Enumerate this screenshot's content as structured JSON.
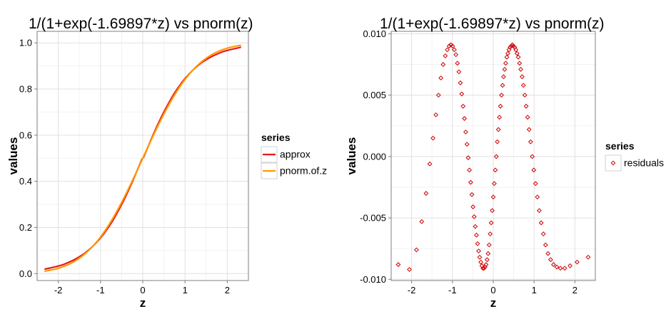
{
  "chart_data": [
    {
      "type": "line",
      "title": "1/(1+exp(-1.69897*z) vs pnorm(z)",
      "xlabel": "z",
      "ylabel": "values",
      "xlim": [
        -2.5,
        2.5
      ],
      "ylim": [
        -0.03,
        1.05
      ],
      "x_ticks": [
        -2,
        -1,
        0,
        1,
        2
      ],
      "x_tick_labels": [
        "-2",
        "-1",
        "0",
        "1",
        "2"
      ],
      "y_ticks": [
        0.0,
        0.2,
        0.4,
        0.6,
        0.8,
        1.0
      ],
      "y_tick_labels": [
        "0.0",
        "0.2",
        "0.4",
        "0.6",
        "0.8",
        "1.0"
      ],
      "grid": true,
      "legend": {
        "title": "series",
        "position": "right"
      },
      "x": [
        -2.326,
        -2.054,
        -1.881,
        -1.751,
        -1.645,
        -1.555,
        -1.476,
        -1.405,
        -1.341,
        -1.282,
        -1.227,
        -1.175,
        -1.126,
        -1.08,
        -1.036,
        -0.994,
        -0.954,
        -0.915,
        -0.878,
        -0.842,
        -0.806,
        -0.772,
        -0.739,
        -0.706,
        -0.674,
        -0.643,
        -0.613,
        -0.583,
        -0.553,
        -0.524,
        -0.496,
        -0.468,
        -0.44,
        -0.412,
        -0.385,
        -0.358,
        -0.332,
        -0.305,
        -0.279,
        -0.253,
        -0.228,
        -0.202,
        -0.176,
        -0.151,
        -0.126,
        -0.1,
        -0.075,
        -0.05,
        -0.025,
        0.0,
        0.025,
        0.05,
        0.075,
        0.1,
        0.126,
        0.151,
        0.176,
        0.202,
        0.228,
        0.253,
        0.279,
        0.305,
        0.332,
        0.358,
        0.385,
        0.412,
        0.44,
        0.468,
        0.496,
        0.524,
        0.553,
        0.583,
        0.613,
        0.643,
        0.674,
        0.706,
        0.739,
        0.772,
        0.806,
        0.842,
        0.878,
        0.915,
        0.954,
        0.994,
        1.036,
        1.08,
        1.126,
        1.175,
        1.227,
        1.282,
        1.341,
        1.405,
        1.476,
        1.555,
        1.645,
        1.751,
        1.881,
        2.054,
        2.326
      ],
      "series": [
        {
          "name": "approx",
          "color": "#e41a1c",
          "values": [
            0.019,
            0.03,
            0.039,
            0.049,
            0.058,
            0.067,
            0.076,
            0.084,
            0.093,
            0.102,
            0.111,
            0.12,
            0.129,
            0.138,
            0.147,
            0.156,
            0.165,
            0.174,
            0.184,
            0.193,
            0.202,
            0.212,
            0.221,
            0.231,
            0.241,
            0.251,
            0.261,
            0.271,
            0.281,
            0.291,
            0.301,
            0.311,
            0.321,
            0.332,
            0.342,
            0.353,
            0.363,
            0.374,
            0.385,
            0.395,
            0.406,
            0.417,
            0.428,
            0.439,
            0.45,
            0.461,
            0.472,
            0.483,
            0.494,
            0.5,
            0.506,
            0.517,
            0.528,
            0.539,
            0.55,
            0.561,
            0.572,
            0.583,
            0.594,
            0.605,
            0.615,
            0.626,
            0.637,
            0.647,
            0.658,
            0.668,
            0.679,
            0.689,
            0.699,
            0.709,
            0.719,
            0.729,
            0.739,
            0.749,
            0.759,
            0.769,
            0.779,
            0.788,
            0.798,
            0.807,
            0.816,
            0.826,
            0.835,
            0.844,
            0.853,
            0.862,
            0.871,
            0.88,
            0.889,
            0.898,
            0.907,
            0.916,
            0.924,
            0.933,
            0.942,
            0.951,
            0.961,
            0.97,
            0.981
          ]
        },
        {
          "name": "pnorm.of.z",
          "color": "#ff9900",
          "values": [
            0.01,
            0.02,
            0.03,
            0.04,
            0.05,
            0.06,
            0.07,
            0.08,
            0.09,
            0.1,
            0.11,
            0.12,
            0.13,
            0.14,
            0.15,
            0.16,
            0.17,
            0.18,
            0.19,
            0.2,
            0.21,
            0.22,
            0.23,
            0.24,
            0.25,
            0.26,
            0.27,
            0.28,
            0.29,
            0.3,
            0.31,
            0.32,
            0.33,
            0.34,
            0.35,
            0.36,
            0.37,
            0.38,
            0.39,
            0.4,
            0.41,
            0.42,
            0.43,
            0.44,
            0.45,
            0.46,
            0.47,
            0.48,
            0.49,
            0.5,
            0.51,
            0.52,
            0.53,
            0.54,
            0.55,
            0.56,
            0.57,
            0.58,
            0.59,
            0.6,
            0.61,
            0.62,
            0.63,
            0.64,
            0.65,
            0.66,
            0.67,
            0.68,
            0.69,
            0.7,
            0.71,
            0.72,
            0.73,
            0.74,
            0.75,
            0.76,
            0.77,
            0.78,
            0.79,
            0.8,
            0.81,
            0.82,
            0.83,
            0.84,
            0.85,
            0.86,
            0.87,
            0.88,
            0.89,
            0.9,
            0.91,
            0.92,
            0.93,
            0.94,
            0.95,
            0.96,
            0.97,
            0.98,
            0.99
          ]
        }
      ]
    },
    {
      "type": "scatter",
      "title": "1/(1+exp(-1.69897*z) vs pnorm(z)",
      "xlabel": "z",
      "ylabel": "values",
      "xlim": [
        -2.5,
        2.5
      ],
      "ylim": [
        -0.0101,
        0.0102
      ],
      "x_ticks": [
        -2,
        -1,
        0,
        1,
        2
      ],
      "x_tick_labels": [
        "-2",
        "-1",
        "0",
        "1",
        "2"
      ],
      "y_ticks": [
        -0.01,
        -0.005,
        0.0,
        0.005,
        0.01
      ],
      "y_tick_labels": [
        "-0.010",
        "-0.005",
        "0.000",
        "0.005",
        "0.010"
      ],
      "grid": true,
      "legend": {
        "title": "series",
        "position": "right"
      },
      "series": [
        {
          "name": "residuals",
          "color": "#cc0000",
          "marker": "diamond-open",
          "x": [
            -2.326,
            -2.054,
            -1.881,
            -1.751,
            -1.645,
            -1.555,
            -1.476,
            -1.405,
            -1.341,
            -1.282,
            -1.227,
            -1.175,
            -1.126,
            -1.08,
            -1.036,
            -0.994,
            -0.954,
            -0.915,
            -0.878,
            -0.842,
            -0.806,
            -0.772,
            -0.739,
            -0.706,
            -0.674,
            -0.643,
            -0.613,
            -0.583,
            -0.553,
            -0.524,
            -0.496,
            -0.468,
            -0.44,
            -0.412,
            -0.385,
            -0.358,
            -0.332,
            -0.305,
            -0.279,
            -0.253,
            -0.228,
            -0.202,
            -0.176,
            -0.151,
            -0.126,
            -0.1,
            -0.075,
            -0.05,
            -0.025,
            0.0,
            0.025,
            0.05,
            0.075,
            0.1,
            0.126,
            0.151,
            0.176,
            0.202,
            0.228,
            0.253,
            0.279,
            0.305,
            0.332,
            0.358,
            0.385,
            0.412,
            0.44,
            0.468,
            0.496,
            0.524,
            0.553,
            0.583,
            0.613,
            0.643,
            0.674,
            0.706,
            0.739,
            0.772,
            0.806,
            0.842,
            0.878,
            0.915,
            0.954,
            0.994,
            1.036,
            1.08,
            1.126,
            1.175,
            1.227,
            1.282,
            1.341,
            1.405,
            1.476,
            1.555,
            1.645,
            1.751,
            1.881,
            2.054,
            2.326
          ],
          "y": [
            -0.0088,
            -0.0092,
            -0.0076,
            -0.0053,
            -0.003,
            -0.0006,
            0.0015,
            0.0034,
            0.005,
            0.0064,
            0.0075,
            0.0082,
            0.0087,
            0.009,
            0.0091,
            0.009,
            0.0087,
            0.0083,
            0.0076,
            0.0069,
            0.006,
            0.0051,
            0.0041,
            0.0031,
            0.002,
            0.001,
            -0.0001,
            -0.0011,
            -0.0021,
            -0.0031,
            -0.0041,
            -0.0049,
            -0.0057,
            -0.0064,
            -0.0071,
            -0.0077,
            -0.0082,
            -0.0086,
            -0.0089,
            -0.0091,
            -0.0091,
            -0.009,
            -0.0088,
            -0.0084,
            -0.0079,
            -0.0072,
            -0.0063,
            -0.0054,
            -0.0044,
            -0.0033,
            -0.0022,
            -0.0011,
            0.0,
            0.0012,
            0.0022,
            0.0032,
            0.0041,
            0.005,
            0.0058,
            0.0065,
            0.0071,
            0.0076,
            0.0081,
            0.0084,
            0.0087,
            0.0089,
            0.009,
            0.0091,
            0.009,
            0.0089,
            0.0087,
            0.0084,
            0.0081,
            0.0076,
            0.0071,
            0.0065,
            0.0058,
            0.005,
            0.0041,
            0.0032,
            0.0022,
            0.0012,
            0.0,
            -0.0011,
            -0.0022,
            -0.0033,
            -0.0044,
            -0.0054,
            -0.0063,
            -0.0072,
            -0.0079,
            -0.0084,
            -0.0088,
            -0.009,
            -0.0091,
            -0.0091,
            -0.0089,
            -0.0086,
            -0.0082
          ]
        }
      ]
    }
  ]
}
